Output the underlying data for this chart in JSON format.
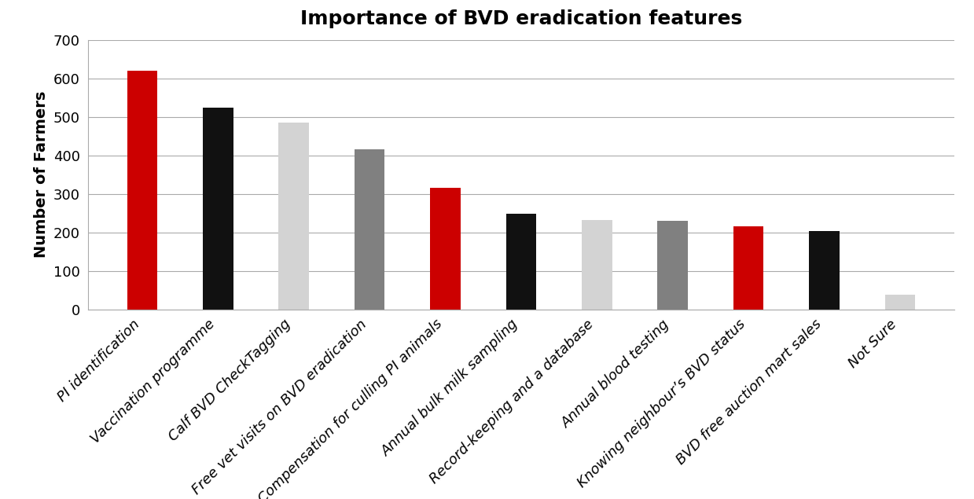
{
  "categories": [
    "PI identification",
    "Vaccination programme",
    "Calf BVD CheckTagging",
    "Free vet visits on BVD eradication",
    "Compensation for culling PI animals",
    "Annual bulk milk sampling",
    "Record-keeping and a database",
    "Annual blood testing",
    "Knowing neighbour’s BVD status",
    "BVD free auction mart sales",
    "Not Sure"
  ],
  "values": [
    620,
    525,
    485,
    415,
    315,
    248,
    233,
    230,
    215,
    203,
    38
  ],
  "bar_colors": [
    "#cc0000",
    "#111111",
    "#d3d3d3",
    "#808080",
    "#cc0000",
    "#111111",
    "#d3d3d3",
    "#808080",
    "#cc0000",
    "#111111",
    "#d3d3d3"
  ],
  "title": "Importance of BVD eradication features",
  "ylabel": "Number of Farmers",
  "ylim": [
    0,
    700
  ],
  "yticks": [
    0,
    100,
    200,
    300,
    400,
    500,
    600,
    700
  ],
  "title_fontsize": 18,
  "label_fontsize": 14,
  "tick_fontsize": 13,
  "bar_width": 0.4,
  "background_color": "#ffffff"
}
